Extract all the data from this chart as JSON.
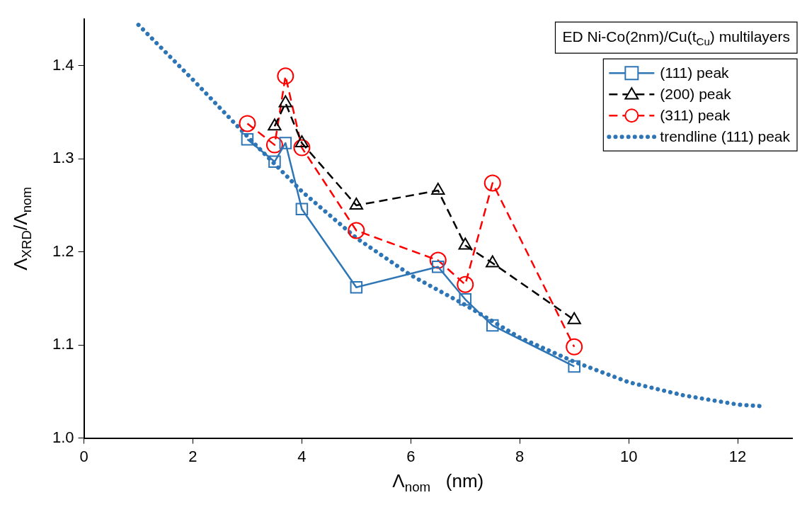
{
  "chart_data": {
    "type": "line",
    "xlabel": "Λ$_{nom}$   (nm)",
    "ylabel": "Λ$_{XRD}$/Λ$_{nom}$",
    "annotations": [
      "ED Ni-Co(2nm)/Cu(t$_{Cu}$) multilayers"
    ],
    "xlim": [
      0,
      13
    ],
    "xticks": [
      0,
      2,
      4,
      6,
      8,
      10,
      12
    ],
    "ylim": [
      1,
      1.45
    ],
    "yticks": [
      {
        "value": 1,
        "label": "1.0"
      },
      {
        "value": 1.1,
        "label": "1.1"
      },
      {
        "value": 1.2,
        "label": "1.2"
      },
      {
        "value": 1.3,
        "label": "1.3"
      },
      {
        "value": 1.4,
        "label": "1.4"
      }
    ],
    "grid": false,
    "legend": "top right",
    "series": [
      {
        "name": "(111) peak",
        "color": "#2e75b6",
        "type": "line",
        "marker": "square",
        "line_style": "solid",
        "x": [
          3,
          3.5,
          3.7,
          4,
          5,
          6.5,
          7,
          7.5,
          9
        ],
        "values": [
          1.321,
          1.297,
          1.317,
          1.246,
          1.162,
          1.184,
          1.149,
          1.121,
          1.077
        ]
      },
      {
        "name": "(200) peak",
        "color": "#000000",
        "type": "line",
        "marker": "triangle",
        "line_style": "dashed",
        "x": [
          3.5,
          3.7,
          4,
          5,
          6.5,
          7,
          7.5,
          9
        ],
        "values": [
          1.335,
          1.36,
          1.317,
          1.25,
          1.266,
          1.207,
          1.188,
          1.127
        ]
      },
      {
        "name": "(311) peak",
        "color": "#ff0000",
        "type": "line",
        "marker": "circle",
        "line_style": "dashed",
        "x": [
          3,
          3.5,
          3.7,
          4,
          5,
          6.5,
          7,
          7.5,
          9
        ],
        "values": [
          1.338,
          1.315,
          1.389,
          1.312,
          1.223,
          1.191,
          1.165,
          1.274,
          1.098
        ]
      },
      {
        "name": "trendline (111) peak",
        "color": "#2e75b6",
        "type": "line",
        "marker": "none",
        "line_style": "dotted",
        "x": [
          1,
          2,
          3,
          4,
          5,
          6,
          7,
          8,
          9,
          10,
          11,
          12,
          12.5
        ],
        "values": [
          1.444,
          1.385,
          1.324,
          1.265,
          1.215,
          1.175,
          1.143,
          1.108,
          1.082,
          1.06,
          1.046,
          1.036,
          1.034
        ]
      }
    ]
  }
}
